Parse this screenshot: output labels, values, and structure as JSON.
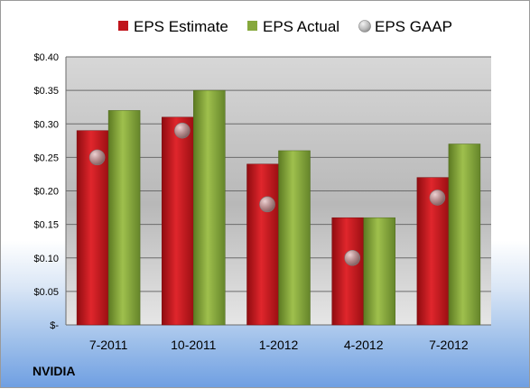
{
  "company": "NVIDIA",
  "colors": {
    "estimate": "#c0141b",
    "actual": "#86a83c",
    "gaap": "#9a9a9a"
  },
  "chart_data": {
    "type": "bar",
    "categories": [
      "7-2011",
      "10-2011",
      "1-2012",
      "4-2012",
      "7-2012"
    ],
    "series": [
      {
        "name": "EPS Estimate",
        "type": "bar",
        "values": [
          0.29,
          0.31,
          0.24,
          0.16,
          0.22
        ]
      },
      {
        "name": "EPS Actual",
        "type": "bar",
        "values": [
          0.32,
          0.35,
          0.26,
          0.16,
          0.27
        ]
      },
      {
        "name": "EPS GAAP",
        "type": "scatter",
        "values": [
          0.25,
          0.29,
          0.18,
          0.1,
          0.19
        ]
      }
    ],
    "ylim": [
      0,
      0.4
    ],
    "yticks": [
      0,
      0.05,
      0.1,
      0.15,
      0.2,
      0.25,
      0.3,
      0.35,
      0.4
    ],
    "ytick_labels": [
      "$-",
      "$0.05",
      "$0.10",
      "$0.15",
      "$0.20",
      "$0.25",
      "$0.30",
      "$0.35",
      "$0.40"
    ],
    "legend_position": "top",
    "grid": true
  }
}
